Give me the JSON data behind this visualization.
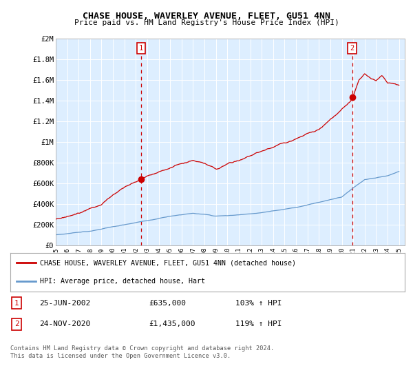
{
  "title": "CHASE HOUSE, WAVERLEY AVENUE, FLEET, GU51 4NN",
  "subtitle": "Price paid vs. HM Land Registry's House Price Index (HPI)",
  "ylim": [
    0,
    2000000
  ],
  "xlim_start": 1995.0,
  "xlim_end": 2025.5,
  "yticks": [
    0,
    200000,
    400000,
    600000,
    800000,
    1000000,
    1200000,
    1400000,
    1600000,
    1800000,
    2000000
  ],
  "ytick_labels": [
    "£0",
    "£200K",
    "£400K",
    "£600K",
    "£800K",
    "£1M",
    "£1.2M",
    "£1.4M",
    "£1.6M",
    "£1.8M",
    "£2M"
  ],
  "xticks": [
    1995,
    1996,
    1997,
    1998,
    1999,
    2000,
    2001,
    2002,
    2003,
    2004,
    2005,
    2006,
    2007,
    2008,
    2009,
    2010,
    2011,
    2012,
    2013,
    2014,
    2015,
    2016,
    2017,
    2018,
    2019,
    2020,
    2021,
    2022,
    2023,
    2024,
    2025
  ],
  "house_color": "#cc0000",
  "hpi_color": "#6699cc",
  "chart_bg_color": "#ddeeff",
  "marker1_x": 2002.48,
  "marker1_y": 635000,
  "marker2_x": 2020.9,
  "marker2_y": 1435000,
  "legend_house": "CHASE HOUSE, WAVERLEY AVENUE, FLEET, GU51 4NN (detached house)",
  "legend_hpi": "HPI: Average price, detached house, Hart",
  "table_row1": [
    "1",
    "25-JUN-2002",
    "£635,000",
    "103% ↑ HPI"
  ],
  "table_row2": [
    "2",
    "24-NOV-2020",
    "£1,435,000",
    "119% ↑ HPI"
  ],
  "footnote": "Contains HM Land Registry data © Crown copyright and database right 2024.\nThis data is licensed under the Open Government Licence v3.0.",
  "background_color": "#ffffff"
}
